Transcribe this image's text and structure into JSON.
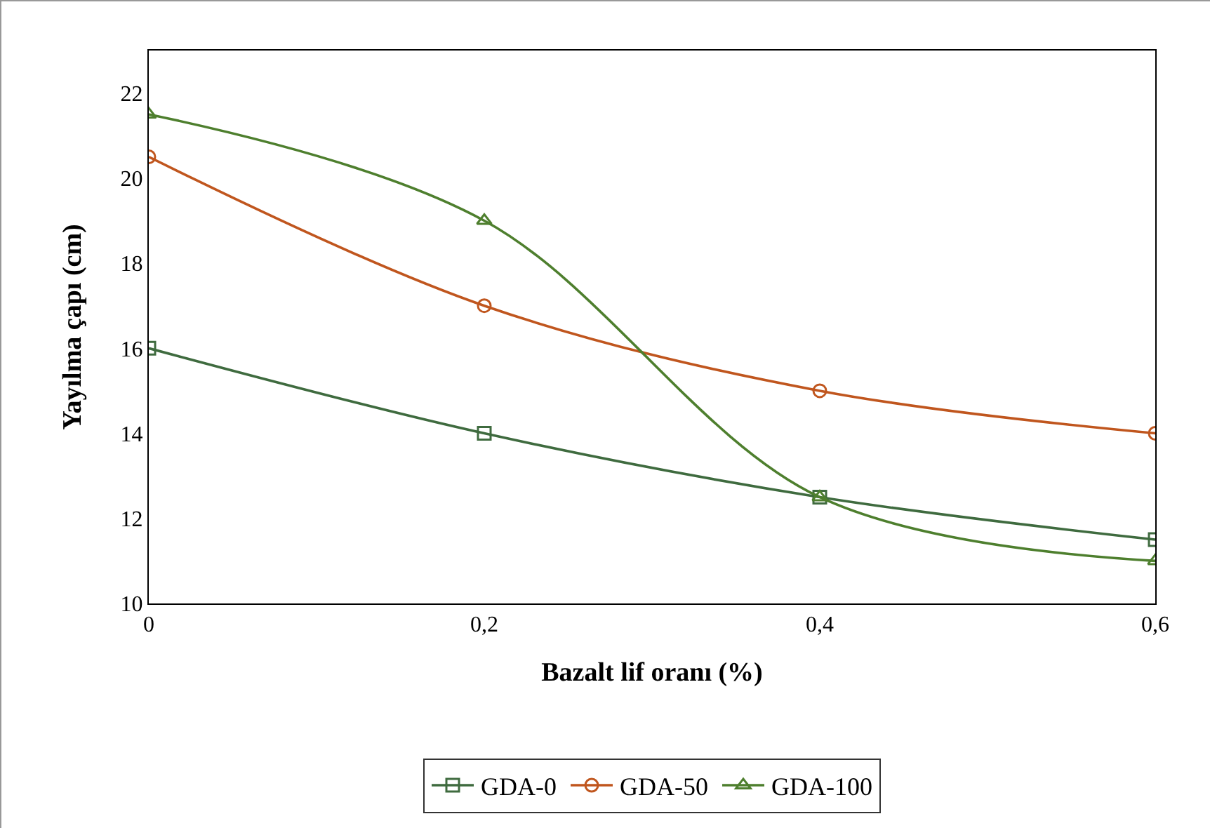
{
  "chart_data": {
    "type": "line",
    "xlabel": "Bazalt lif oranı (%)",
    "ylabel": "Yayılma çapı (cm)",
    "x": [
      0,
      0.2,
      0.4,
      0.6
    ],
    "series": [
      {
        "name": "GDA-0",
        "color": "#3f6b3f",
        "marker": "square",
        "values": [
          16,
          14,
          12.5,
          11.5
        ]
      },
      {
        "name": "GDA-50",
        "color": "#c0561e",
        "marker": "circle",
        "values": [
          20.5,
          17,
          15,
          14
        ]
      },
      {
        "name": "GDA-100",
        "color": "#4e7f2e",
        "marker": "triangle",
        "values": [
          21.5,
          19,
          12.5,
          11
        ]
      }
    ],
    "xlim": [
      0,
      0.6
    ],
    "xticks": [
      0,
      {
        "value": 0.2,
        "label": "0,2"
      },
      {
        "value": 0.4,
        "label": "0,4"
      },
      {
        "value": 0.6,
        "label": "0,6"
      }
    ],
    "ylim": [
      10,
      23
    ],
    "yticks": [
      10,
      12,
      14,
      16,
      18,
      20,
      22
    ],
    "grid": false,
    "legend": "bottom",
    "line_style": "solid"
  }
}
